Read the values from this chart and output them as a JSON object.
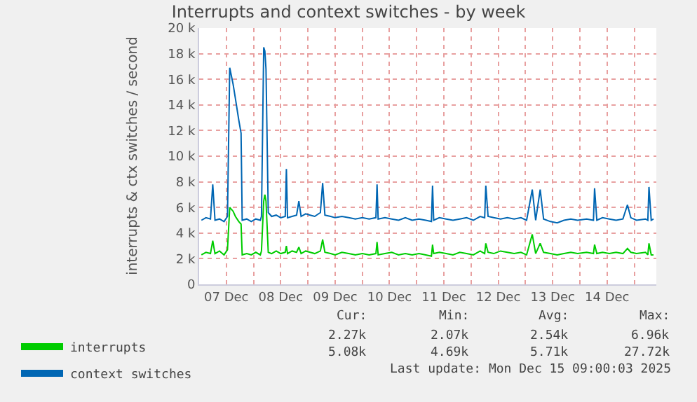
{
  "chart_data": {
    "type": "line",
    "title": "Interrupts and context switches - by week",
    "ylabel": "interrupts & ctx switches / second",
    "x": [
      "2025-12-07T01:00",
      "2025-12-07T03:00",
      "2025-12-07T05:00",
      "2025-12-07T06:00",
      "2025-12-07T07:00",
      "2025-12-07T09:00",
      "2025-12-07T11:00",
      "2025-12-07T12:30",
      "2025-12-07T13:30",
      "2025-12-07T15:00",
      "2025-12-07T16:00",
      "2025-12-07T17:30",
      "2025-12-07T18:30",
      "2025-12-07T19:00",
      "2025-12-07T21:00",
      "2025-12-07T23:00",
      "2025-12-08T01:00",
      "2025-12-08T03:00",
      "2025-12-08T03:30",
      "2025-12-08T04:30",
      "2025-12-08T05:00",
      "2025-12-08T05:30",
      "2025-12-08T06:30",
      "2025-12-08T08:00",
      "2025-12-08T10:00",
      "2025-12-08T12:00",
      "2025-12-08T14:00",
      "2025-12-08T14:30",
      "2025-12-08T15:00",
      "2025-12-08T17:00",
      "2025-12-08T19:00",
      "2025-12-08T20:00",
      "2025-12-08T21:00",
      "2025-12-08T23:00",
      "2025-12-09T01:00",
      "2025-12-09T03:00",
      "2025-12-09T05:30",
      "2025-12-09T06:30",
      "2025-12-09T07:30",
      "2025-12-09T10:00",
      "2025-12-09T12:00",
      "2025-12-09T15:00",
      "2025-12-09T18:00",
      "2025-12-09T21:00",
      "2025-12-10T00:00",
      "2025-12-10T03:00",
      "2025-12-10T06:00",
      "2025-12-10T06:30",
      "2025-12-10T07:00",
      "2025-12-10T10:00",
      "2025-12-10T13:00",
      "2025-12-10T16:00",
      "2025-12-10T19:00",
      "2025-12-10T22:00",
      "2025-12-11T01:00",
      "2025-12-11T04:00",
      "2025-12-11T06:30",
      "2025-12-11T07:00",
      "2025-12-11T07:30",
      "2025-12-11T10:00",
      "2025-12-11T13:00",
      "2025-12-11T16:00",
      "2025-12-11T19:00",
      "2025-12-11T22:00",
      "2025-12-12T01:00",
      "2025-12-12T04:00",
      "2025-12-12T06:00",
      "2025-12-12T06:30",
      "2025-12-12T07:30",
      "2025-12-12T10:00",
      "2025-12-12T13:00",
      "2025-12-12T16:00",
      "2025-12-12T19:00",
      "2025-12-12T22:00",
      "2025-12-13T00:30",
      "2025-12-13T03:00",
      "2025-12-13T04:30",
      "2025-12-13T06:30",
      "2025-12-13T08:00",
      "2025-12-13T11:00",
      "2025-12-13T14:00",
      "2025-12-13T17:00",
      "2025-12-13T20:00",
      "2025-12-13T23:00",
      "2025-12-14T03:00",
      "2025-12-14T06:00",
      "2025-12-14T06:30",
      "2025-12-14T07:30",
      "2025-12-14T10:00",
      "2025-12-14T13:00",
      "2025-12-14T16:00",
      "2025-12-14T19:00",
      "2025-12-14T21:00",
      "2025-12-14T22:30",
      "2025-12-15T01:00",
      "2025-12-15T05:00",
      "2025-12-15T06:00",
      "2025-12-15T06:30",
      "2025-12-15T07:30",
      "2025-12-15T08:30"
    ],
    "series": [
      {
        "name": "interrupts",
        "color": "#00cc00",
        "values": [
          2300,
          2500,
          2400,
          3400,
          2400,
          2600,
          2300,
          2700,
          6000,
          5700,
          5300,
          4900,
          4700,
          2300,
          2400,
          2300,
          2500,
          2300,
          2600,
          6500,
          7000,
          6500,
          2500,
          2400,
          2600,
          2400,
          2500,
          3000,
          2400,
          2600,
          2500,
          2900,
          2400,
          2600,
          2500,
          2400,
          2600,
          3500,
          2500,
          2400,
          2300,
          2500,
          2400,
          2300,
          2400,
          2300,
          2400,
          3300,
          2300,
          2400,
          2500,
          2300,
          2400,
          2300,
          2400,
          2300,
          2200,
          3100,
          2400,
          2500,
          2400,
          2300,
          2500,
          2400,
          2300,
          2600,
          2400,
          3200,
          2500,
          2400,
          2600,
          2500,
          2400,
          2500,
          2300,
          3900,
          2400,
          3200,
          2500,
          2400,
          2300,
          2400,
          2500,
          2400,
          2500,
          2400,
          3100,
          2400,
          2500,
          2400,
          2500,
          2400,
          2800,
          2500,
          2400,
          2500,
          2300,
          3200,
          2300,
          2300
        ]
      },
      {
        "name": "context switches",
        "color": "#0066b3",
        "values": [
          5000,
          5200,
          5100,
          7800,
          5000,
          5100,
          4900,
          5300,
          16900,
          15600,
          14500,
          12800,
          11800,
          5000,
          5100,
          4900,
          5100,
          5000,
          5300,
          18500,
          18200,
          16800,
          5600,
          5300,
          5400,
          5200,
          5300,
          9000,
          5200,
          5300,
          5400,
          6500,
          5300,
          5500,
          5400,
          5300,
          5600,
          7900,
          5400,
          5300,
          5200,
          5300,
          5200,
          5100,
          5200,
          5100,
          5200,
          7800,
          5100,
          5200,
          5100,
          5000,
          5200,
          5000,
          5100,
          5000,
          4900,
          7700,
          5000,
          5200,
          5100,
          5000,
          5100,
          5200,
          5000,
          5300,
          5200,
          7700,
          5300,
          5200,
          5100,
          5200,
          5100,
          5200,
          5000,
          7400,
          5000,
          7400,
          5100,
          4900,
          4800,
          5000,
          5100,
          5000,
          5100,
          5000,
          7500,
          5000,
          5200,
          5100,
          5000,
          5100,
          6200,
          5200,
          5000,
          5100,
          5000,
          7600,
          5000,
          5100
        ]
      }
    ],
    "xlim": [
      "2025-12-07T00:00",
      "2025-12-15T09:45"
    ],
    "xticks": [
      {
        "value": "2025-12-07T00:00",
        "label": null
      },
      {
        "value": "2025-12-07T12:00",
        "label": "07 Dec"
      },
      {
        "value": "2025-12-08T00:00",
        "label": null
      },
      {
        "value": "2025-12-08T12:00",
        "label": "08 Dec"
      },
      {
        "value": "2025-12-09T00:00",
        "label": null
      },
      {
        "value": "2025-12-09T12:00",
        "label": "09 Dec"
      },
      {
        "value": "2025-12-10T00:00",
        "label": null
      },
      {
        "value": "2025-12-10T12:00",
        "label": "10 Dec"
      },
      {
        "value": "2025-12-11T00:00",
        "label": null
      },
      {
        "value": "2025-12-11T12:00",
        "label": "11 Dec"
      },
      {
        "value": "2025-12-12T00:00",
        "label": null
      },
      {
        "value": "2025-12-12T12:00",
        "label": "12 Dec"
      },
      {
        "value": "2025-12-13T00:00",
        "label": null
      },
      {
        "value": "2025-12-13T12:00",
        "label": "13 Dec"
      },
      {
        "value": "2025-12-14T00:00",
        "label": null
      },
      {
        "value": "2025-12-14T12:00",
        "label": "14 Dec"
      },
      {
        "value": "2025-12-15T00:00",
        "label": null
      }
    ],
    "ylim": [
      0,
      20000
    ],
    "yticks": [
      0,
      {
        "value": 2000,
        "label": "2 k"
      },
      {
        "value": 4000,
        "label": "4 k"
      },
      {
        "value": 6000,
        "label": "6 k"
      },
      {
        "value": 8000,
        "label": "8 k"
      },
      {
        "value": 10000,
        "label": "10 k"
      },
      {
        "value": 12000,
        "label": "12 k"
      },
      {
        "value": 14000,
        "label": "14 k"
      },
      {
        "value": 16000,
        "label": "16 k"
      },
      {
        "value": 18000,
        "label": "18 k"
      },
      {
        "value": 20000,
        "label": "20 k"
      }
    ],
    "grid": true,
    "legend": "bottom left",
    "marker": "none",
    "line_style": "solid",
    "annotations": [
      "Cur:",
      "Min:",
      "Avg:",
      "Max:",
      "2.27k",
      "2.07k",
      "2.54k",
      "6.96k",
      "5.08k",
      "4.69k",
      "5.71k",
      "27.72k",
      "Last update: Mon Dec 15 09:00:03 2025"
    ]
  }
}
